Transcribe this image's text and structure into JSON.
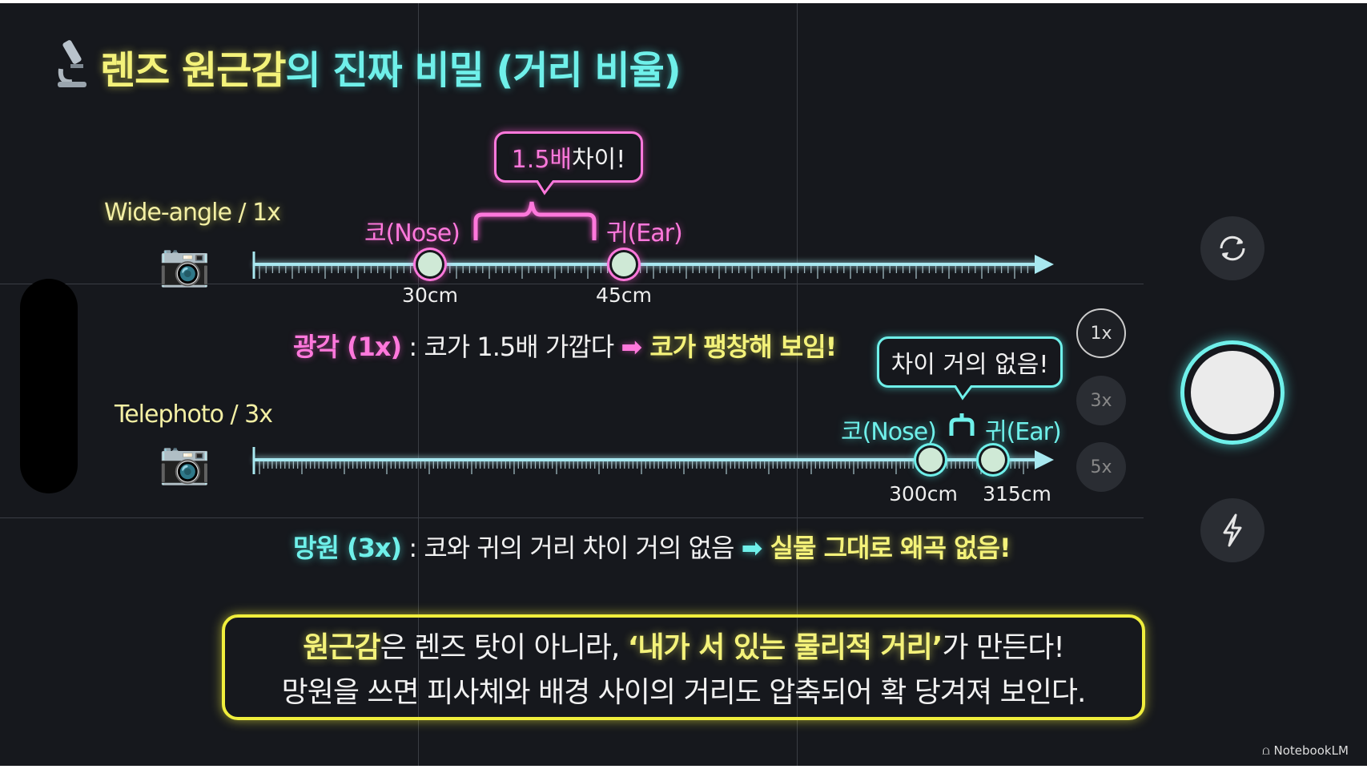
{
  "title": {
    "part_yellow": "렌즈 원근감",
    "part_cyan": "의 진짜 비밀 (거리 비율)",
    "icon": "microscope-icon"
  },
  "wide": {
    "label": "Wide-angle / 1x",
    "nose_label": "코(Nose)",
    "ear_label": "귀(Ear)",
    "nose_distance": "30cm",
    "ear_distance": "45cm",
    "bubble_number": "1.5배",
    "bubble_text": " 차이!",
    "summary_prefix": "광각 (1x)",
    "summary_middle": " : 코가 1.5배 가깝다 ",
    "summary_result": "코가 팽창해 보임!"
  },
  "tele": {
    "label": "Telephoto / 3x",
    "nose_label": "코(Nose)",
    "ear_label": "귀(Ear)",
    "nose_distance": "300cm",
    "ear_distance": "315cm",
    "bubble_text": "차이 거의 없음!",
    "summary_prefix": "망원 (3x)",
    "summary_middle": " : 코와 귀의 거리 차이 거의 없음 ",
    "summary_result": "실물 그대로 왜곡 없음!"
  },
  "zoom_levels": [
    {
      "label": "1x",
      "selected": true
    },
    {
      "label": "3x",
      "selected": false
    },
    {
      "label": "5x",
      "selected": false
    }
  ],
  "camera_controls": {
    "rotate": "rotate-camera-icon",
    "shutter": "shutter",
    "flash": "flash-icon"
  },
  "conclusion": {
    "line1_a": "원근감",
    "line1_b": "은 렌즈 탓이 아니라, ",
    "line1_c": "‘내가 서 있는 물리적 거리’",
    "line1_d": "가 만든다!",
    "line2": "망원을 쓰면 피사체와 배경 사이의 거리도 압축되어 확 당겨져 보인다."
  },
  "watermark": "NotebookLM",
  "colors": {
    "yellow": "#f4f27a",
    "cyan": "#6ff0ea",
    "pink": "#ff78dc",
    "background": "#16181d"
  }
}
